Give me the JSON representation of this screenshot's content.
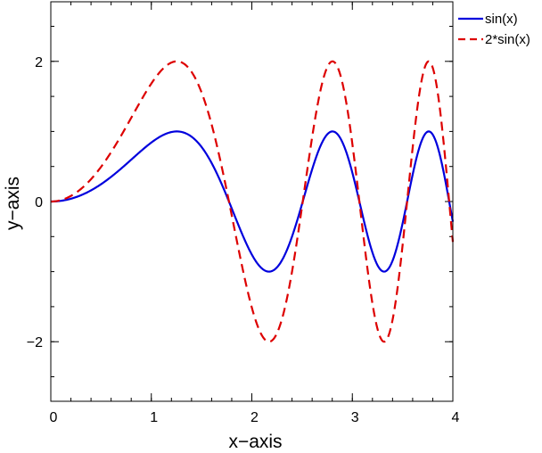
{
  "chart_data": {
    "type": "line",
    "xlabel": "x−axis",
    "ylabel": "y−axis",
    "xlim": [
      0,
      4
    ],
    "ylim": [
      -2.85,
      2.85
    ],
    "xticks": [
      0,
      1,
      2,
      3,
      4
    ],
    "xtick_labels": [
      "0",
      "1",
      "2",
      "3",
      "4"
    ],
    "yticks": [
      -2,
      0,
      2
    ],
    "ytick_labels": [
      "−2",
      "0",
      "2"
    ],
    "x_minor_step": 0.2,
    "y_minor_step": 0.5,
    "grid": false,
    "legend_position": "top-right outside",
    "x": [
      0,
      0.2,
      0.4,
      0.6,
      0.8,
      1.0,
      1.2,
      1.4,
      1.6,
      1.8,
      2.0,
      2.2,
      2.4,
      2.6,
      2.8,
      3.0,
      3.2,
      3.4,
      3.6,
      3.8,
      4.0
    ],
    "series": [
      {
        "name": "sin(x)",
        "formula": "sin(x^2)",
        "color": "#0000dd",
        "dash": "solid",
        "values": [
          0,
          0.04,
          0.159,
          0.352,
          0.597,
          0.841,
          0.991,
          0.925,
          0.549,
          -0.1,
          -0.757,
          -0.99,
          -0.48,
          0.44,
          1.0,
          0.412,
          -0.725,
          -0.834,
          0.271,
          0.9,
          -0.288
        ]
      },
      {
        "name": "2*sin(x)",
        "formula": "2*sin(x^2)",
        "color": "#dd0000",
        "dash": "dashed",
        "values": [
          0,
          0.08,
          0.318,
          0.704,
          1.194,
          1.683,
          1.982,
          1.85,
          1.097,
          -0.2,
          -1.514,
          -1.98,
          -0.96,
          0.88,
          2.0,
          0.824,
          -1.45,
          -1.668,
          0.542,
          1.8,
          -0.576
        ]
      }
    ]
  }
}
